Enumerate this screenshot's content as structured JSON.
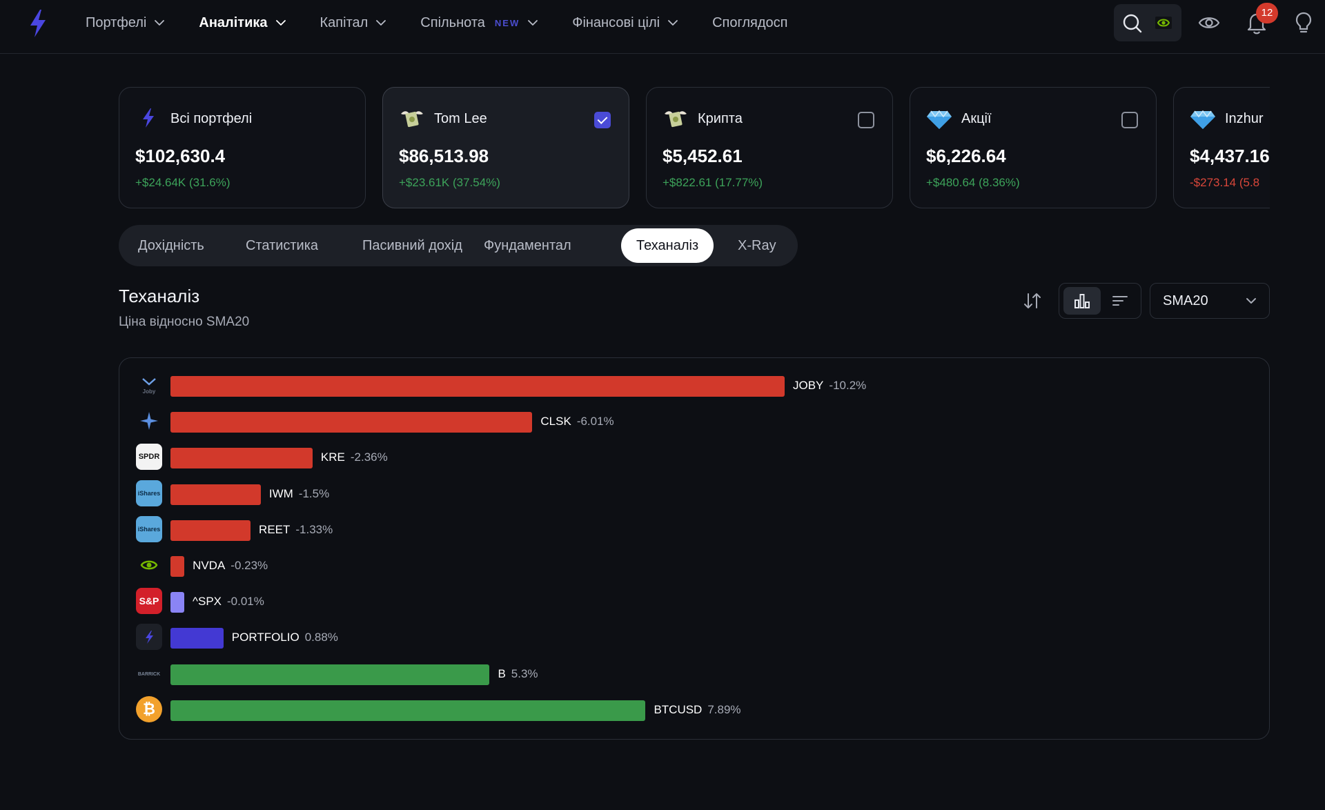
{
  "nav": {
    "items": [
      {
        "label": "Портфелі",
        "active": false,
        "chevron": true
      },
      {
        "label": "Аналітика",
        "active": true,
        "chevron": true
      },
      {
        "label": "Капітал",
        "active": false,
        "chevron": true
      },
      {
        "label": "Спільнота",
        "active": false,
        "chevron": true,
        "badge": "NEW"
      },
      {
        "label": "Фінансові цілі",
        "active": false,
        "chevron": true
      },
      {
        "label": "Споглядосп",
        "active": false,
        "chevron": false
      }
    ],
    "notifications_count": "12"
  },
  "portfolios": [
    {
      "name": "Всі портфелі",
      "value": "$102,630.4",
      "change": "+$24.64K (31.6%)",
      "trend": "up",
      "icon": "bolt-icon",
      "checkbox": null
    },
    {
      "name": "Tom Lee",
      "value": "$86,513.98",
      "change": "+$23.61K (37.54%)",
      "trend": "up",
      "icon": "money-wings-icon",
      "checkbox": true
    },
    {
      "name": "Крипта",
      "value": "$5,452.61",
      "change": "+$822.61 (17.77%)",
      "trend": "up",
      "icon": "money-wings-icon",
      "checkbox": false
    },
    {
      "name": "Акції",
      "value": "$6,226.64",
      "change": "+$480.64 (8.36%)",
      "trend": "up",
      "icon": "diamond-icon",
      "checkbox": false
    },
    {
      "name": "Inzhur",
      "value": "$4,437.16",
      "change": "-$273.14 (5.8",
      "trend": "down",
      "icon": "diamond-icon",
      "checkbox": null
    }
  ],
  "tabs": [
    {
      "label": "Дохідність",
      "active": false
    },
    {
      "label": "Статистика",
      "active": false
    },
    {
      "label": "Пасивний дохід",
      "active": false
    },
    {
      "label": "Фундаментал",
      "active": false
    },
    {
      "label": "Теханаліз",
      "active": true
    },
    {
      "label": "X-Ray",
      "active": false
    }
  ],
  "section": {
    "title": "Теханаліз",
    "subtitle": "Ціна відносно SMA20",
    "indicator": "SMA20"
  },
  "colors": {
    "negative": "#d2392b",
    "positive": "#3a9a4a",
    "portfolio": "#4339d3",
    "neutral": "#8a84f5"
  },
  "chart_data": {
    "type": "bar",
    "orientation": "horizontal",
    "unit": "%",
    "categories": [
      "JOBY",
      "CLSK",
      "KRE",
      "IWM",
      "REET",
      "NVDA",
      "^SPX",
      "PORTFOLIO",
      "B",
      "BTCUSD"
    ],
    "values": [
      -10.2,
      -6.01,
      -2.36,
      -1.5,
      -1.33,
      -0.23,
      -0.01,
      0.88,
      5.3,
      7.89
    ],
    "labels": [
      "-10.2%",
      "-6.01%",
      "-2.36%",
      "-1.5%",
      "-1.33%",
      "-0.23%",
      "-0.01%",
      "0.88%",
      "5.3%",
      "7.89%"
    ],
    "icons": [
      "joby-logo",
      "clsk-logo",
      "spdr-logo",
      "ishares-logo",
      "ishares-logo",
      "nvidia-logo",
      "sp-logo",
      "bolt-icon",
      "barrick-logo",
      "bitcoin-icon"
    ],
    "icon_text": [
      "",
      "",
      "SPDR",
      "iShares",
      "iShares",
      "",
      "S&P",
      "",
      "",
      "₿"
    ]
  }
}
